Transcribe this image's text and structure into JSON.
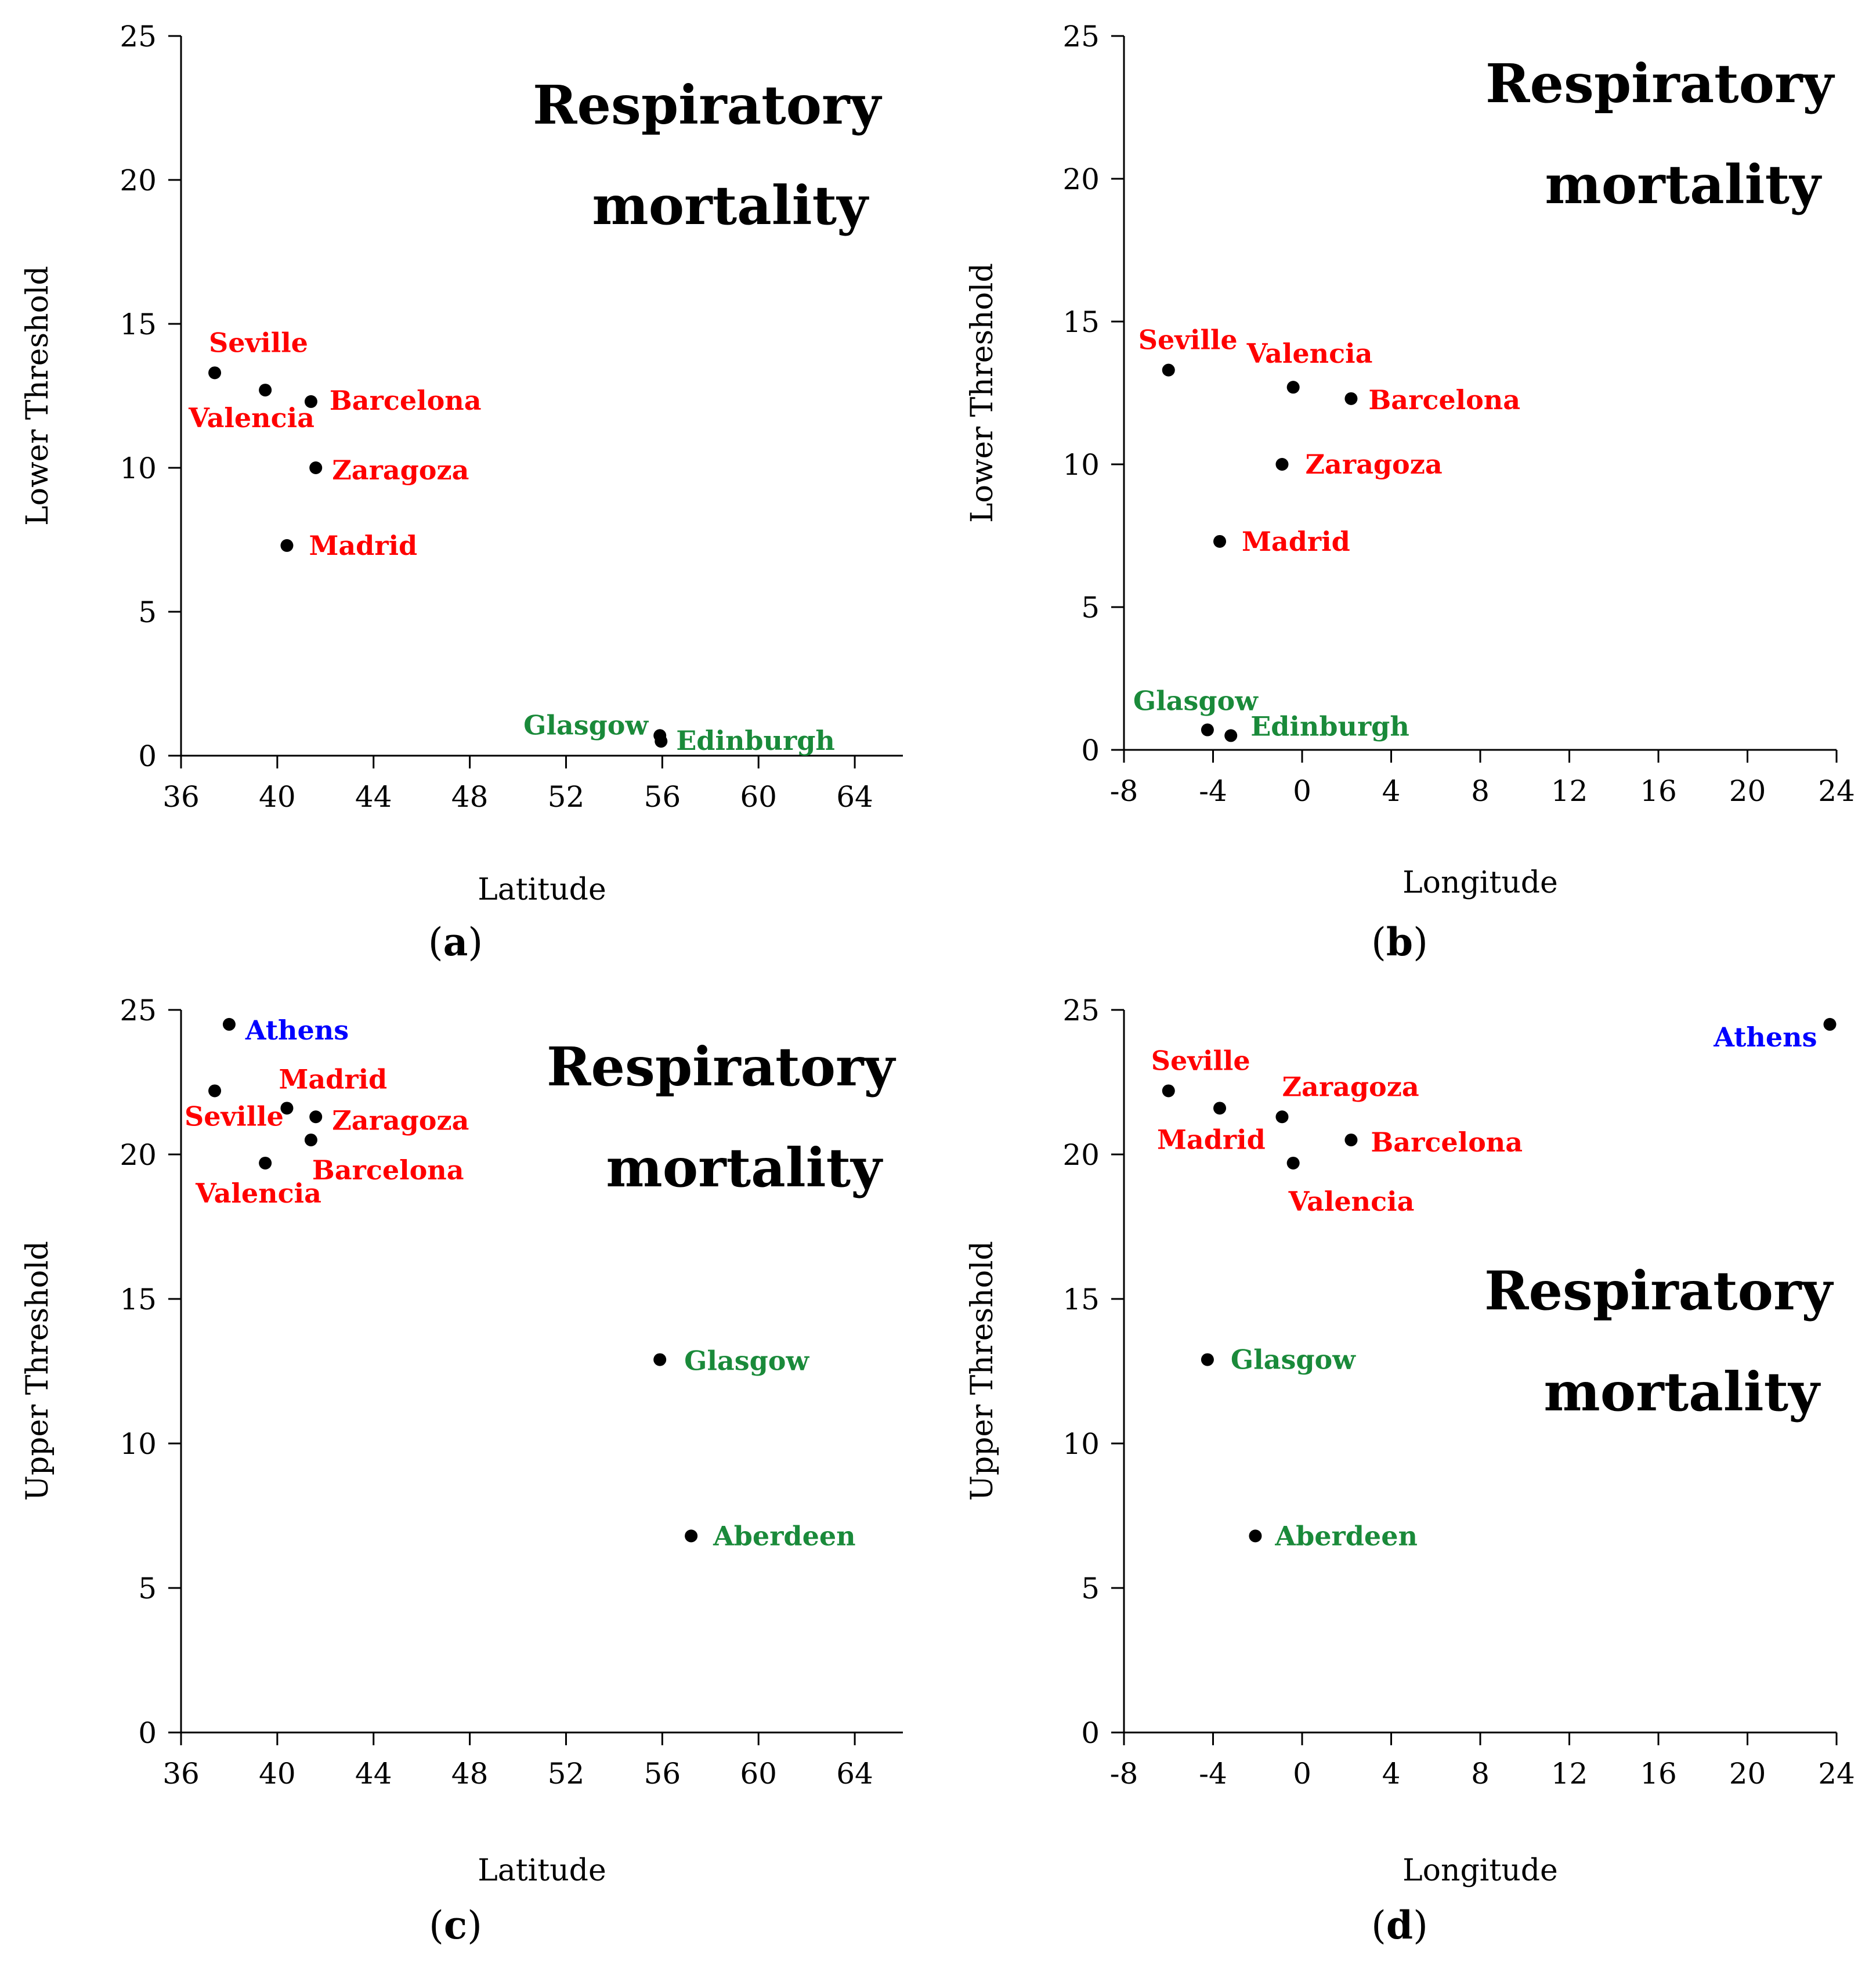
{
  "figure": {
    "colors": {
      "Spain": "#ff0000",
      "UK": "#1a8a3a",
      "Greece": "#0000ff",
      "marker": "#000000"
    }
  },
  "chart_data": [
    {
      "type": "scatter",
      "panel_label": "a",
      "title_lines": [
        "Respiratory",
        "mortality"
      ],
      "xlabel": "Latitude",
      "ylabel": "Lower Threshold",
      "xlim": [
        36,
        66
      ],
      "ylim": [
        0,
        25
      ],
      "xticks": [
        36,
        40,
        44,
        48,
        52,
        56,
        60,
        64
      ],
      "yticks": [
        0,
        5,
        10,
        15,
        20,
        25
      ],
      "points": [
        {
          "label": "Seville",
          "group": "Spain",
          "x": 37.4,
          "y": 13.3
        },
        {
          "label": "Valencia",
          "group": "Spain",
          "x": 39.5,
          "y": 12.7
        },
        {
          "label": "Barcelona",
          "group": "Spain",
          "x": 41.4,
          "y": 12.3
        },
        {
          "label": "Zaragoza",
          "group": "Spain",
          "x": 41.6,
          "y": 10.0
        },
        {
          "label": "Madrid",
          "group": "Spain",
          "x": 40.4,
          "y": 7.3
        },
        {
          "label": "Glasgow",
          "group": "UK",
          "x": 55.9,
          "y": 0.7
        },
        {
          "label": "Edinburgh",
          "group": "UK",
          "x": 55.95,
          "y": 0.5
        }
      ]
    },
    {
      "type": "scatter",
      "panel_label": "b",
      "title_lines": [
        "Respiratory",
        "mortality"
      ],
      "xlabel": "Longitude",
      "ylabel": "Lower Threshold",
      "xlim": [
        -8,
        24
      ],
      "ylim": [
        0,
        25
      ],
      "xticks": [
        -8,
        -4,
        0,
        4,
        8,
        12,
        16,
        20,
        24
      ],
      "yticks": [
        0,
        5,
        10,
        15,
        20,
        25
      ],
      "points": [
        {
          "label": "Seville",
          "group": "Spain",
          "x": -6.0,
          "y": 13.3
        },
        {
          "label": "Valencia",
          "group": "Spain",
          "x": -0.4,
          "y": 12.7
        },
        {
          "label": "Barcelona",
          "group": "Spain",
          "x": 2.2,
          "y": 12.3
        },
        {
          "label": "Zaragoza",
          "group": "Spain",
          "x": -0.9,
          "y": 10.0
        },
        {
          "label": "Madrid",
          "group": "Spain",
          "x": -3.7,
          "y": 7.3
        },
        {
          "label": "Glasgow",
          "group": "UK",
          "x": -4.25,
          "y": 0.7
        },
        {
          "label": "Edinburgh",
          "group": "UK",
          "x": -3.2,
          "y": 0.5
        }
      ]
    },
    {
      "type": "scatter",
      "panel_label": "c",
      "title_lines": [
        "Respiratory",
        "mortality"
      ],
      "xlabel": "Latitude",
      "ylabel": "Upper Threshold",
      "xlim": [
        36,
        66
      ],
      "ylim": [
        0,
        25
      ],
      "xticks": [
        36,
        40,
        44,
        48,
        52,
        56,
        60,
        64
      ],
      "yticks": [
        0,
        5,
        10,
        15,
        20,
        25
      ],
      "points": [
        {
          "label": "Athens",
          "group": "Greece",
          "x": 38.0,
          "y": 24.5
        },
        {
          "label": "Seville",
          "group": "Spain",
          "x": 37.4,
          "y": 22.2
        },
        {
          "label": "Madrid",
          "group": "Spain",
          "x": 40.4,
          "y": 21.6
        },
        {
          "label": "Zaragoza",
          "group": "Spain",
          "x": 41.6,
          "y": 21.3
        },
        {
          "label": "Barcelona",
          "group": "Spain",
          "x": 41.4,
          "y": 20.5
        },
        {
          "label": "Valencia",
          "group": "Spain",
          "x": 39.5,
          "y": 19.7
        },
        {
          "label": "Glasgow",
          "group": "UK",
          "x": 55.9,
          "y": 12.9
        },
        {
          "label": "Aberdeen",
          "group": "UK",
          "x": 57.2,
          "y": 6.8
        }
      ]
    },
    {
      "type": "scatter",
      "panel_label": "d",
      "title_lines": [
        "Respiratory",
        "mortality"
      ],
      "xlabel": "Longitude",
      "ylabel": "Upper Threshold",
      "xlim": [
        -8,
        24
      ],
      "ylim": [
        0,
        25
      ],
      "xticks": [
        -8,
        -4,
        0,
        4,
        8,
        12,
        16,
        20,
        24
      ],
      "yticks": [
        0,
        5,
        10,
        15,
        20,
        25
      ],
      "points": [
        {
          "label": "Athens",
          "group": "Greece",
          "x": 23.7,
          "y": 24.5
        },
        {
          "label": "Seville",
          "group": "Spain",
          "x": -6.0,
          "y": 22.2
        },
        {
          "label": "Madrid",
          "group": "Spain",
          "x": -3.7,
          "y": 21.6
        },
        {
          "label": "Zaragoza",
          "group": "Spain",
          "x": -0.9,
          "y": 21.3
        },
        {
          "label": "Barcelona",
          "group": "Spain",
          "x": 2.2,
          "y": 20.5
        },
        {
          "label": "Valencia",
          "group": "Spain",
          "x": -0.4,
          "y": 19.7
        },
        {
          "label": "Glasgow",
          "group": "UK",
          "x": -4.25,
          "y": 12.9
        },
        {
          "label": "Aberdeen",
          "group": "UK",
          "x": -2.1,
          "y": 6.8
        }
      ]
    }
  ]
}
